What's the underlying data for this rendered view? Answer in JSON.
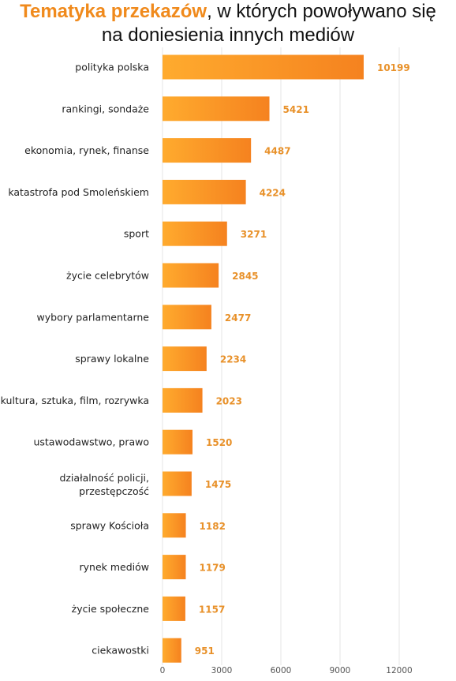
{
  "title": {
    "highlight": "Tematyka przekazów",
    "rest_line1": ", w których powoływano się",
    "line2": "na doniesienia innych mediów"
  },
  "colors": {
    "accent": "#f08a1c",
    "bar_start": "#ffab2e",
    "bar_end": "#f5821f",
    "value_label": "#e8912a",
    "grid": "#e6e6e6"
  },
  "chart_data": {
    "type": "bar",
    "orientation": "horizontal",
    "categories": [
      "polityka polska",
      "rankingi, sondaże",
      "ekonomia, rynek, finanse",
      "katastrofa pod Smoleńskiem",
      "sport",
      "życie celebrytów",
      "wybory parlamentarne",
      "sprawy lokalne",
      "kultura, sztuka, film, rozrywka",
      "ustawodawstwo, prawo",
      "działalność policji, przestępczość",
      "sprawy Kościoła",
      "rynek mediów",
      "życie społeczne",
      "ciekawostki"
    ],
    "values": [
      10199,
      5421,
      4487,
      4224,
      3271,
      2845,
      2477,
      2234,
      2023,
      1520,
      1475,
      1182,
      1179,
      1157,
      951
    ],
    "xlim": [
      0,
      12000
    ],
    "xticks": [
      "0",
      "3000",
      "6000",
      "9000",
      "12000"
    ],
    "grid": true,
    "legend": "none"
  }
}
